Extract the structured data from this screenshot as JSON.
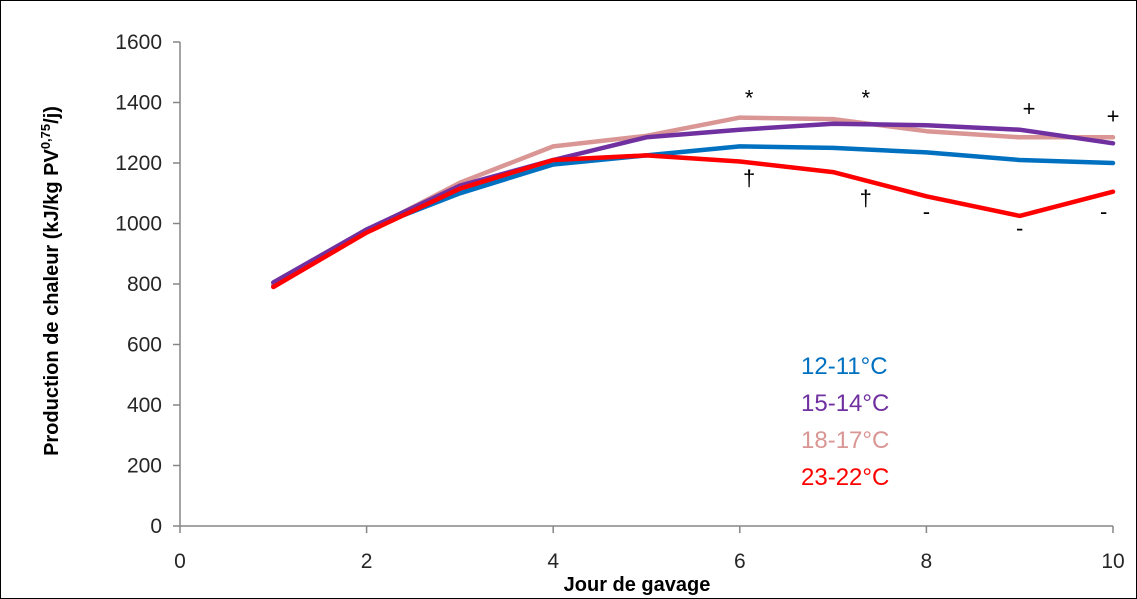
{
  "chart_data": {
    "type": "line",
    "title": "",
    "xlabel": "Jour de gavage",
    "ylabel": {
      "prefix": "Production de chaleur (kJ/kg PV",
      "superscript": "0,75",
      "suffix": "/j)"
    },
    "xlim": [
      0,
      10
    ],
    "ylim": [
      0,
      1600
    ],
    "x_ticks": [
      0,
      2,
      4,
      6,
      8,
      10
    ],
    "y_ticks": [
      0,
      200,
      400,
      600,
      800,
      1000,
      1200,
      1400,
      1600
    ],
    "x_tick_labels": [
      "0",
      "2",
      "4",
      "6",
      "8",
      "10"
    ],
    "y_tick_labels": [
      "0",
      "200",
      "400",
      "600",
      "800",
      "1000",
      "1200",
      "1400",
      "1600"
    ],
    "grid": false,
    "legend_position": "inside-bottom-center",
    "x": [
      1,
      2,
      3,
      4,
      5,
      6,
      7,
      8,
      9,
      10
    ],
    "series": [
      {
        "name": "12-11°C",
        "color": "#0070C0",
        "values": [
          795,
          980,
          1100,
          1195,
          1225,
          1255,
          1250,
          1235,
          1210,
          1200
        ]
      },
      {
        "name": "15-14°C",
        "color": "#7030A0",
        "values": [
          805,
          980,
          1125,
          1210,
          1285,
          1310,
          1330,
          1325,
          1310,
          1265
        ]
      },
      {
        "name": "18-17°C",
        "color": "#D99694",
        "values": [
          800,
          975,
          1135,
          1255,
          1290,
          1350,
          1345,
          1305,
          1285,
          1285
        ]
      },
      {
        "name": "23-22°C",
        "color": "#FF0000",
        "values": [
          790,
          970,
          1115,
          1210,
          1225,
          1205,
          1170,
          1090,
          1025,
          1105
        ]
      }
    ],
    "annotations": [
      {
        "text": "*",
        "x": 6.1,
        "y": 1390
      },
      {
        "text": "*",
        "x": 7.35,
        "y": 1390
      },
      {
        "text": "+",
        "x": 9.1,
        "y": 1355
      },
      {
        "text": "+",
        "x": 10.0,
        "y": 1330
      },
      {
        "text": "†",
        "x": 6.1,
        "y": 1125
      },
      {
        "text": "†",
        "x": 7.35,
        "y": 1060
      },
      {
        "text": "-",
        "x": 8.0,
        "y": 1015
      },
      {
        "text": "-",
        "x": 9.0,
        "y": 960
      },
      {
        "text": "-",
        "x": 9.9,
        "y": 1015
      }
    ]
  }
}
